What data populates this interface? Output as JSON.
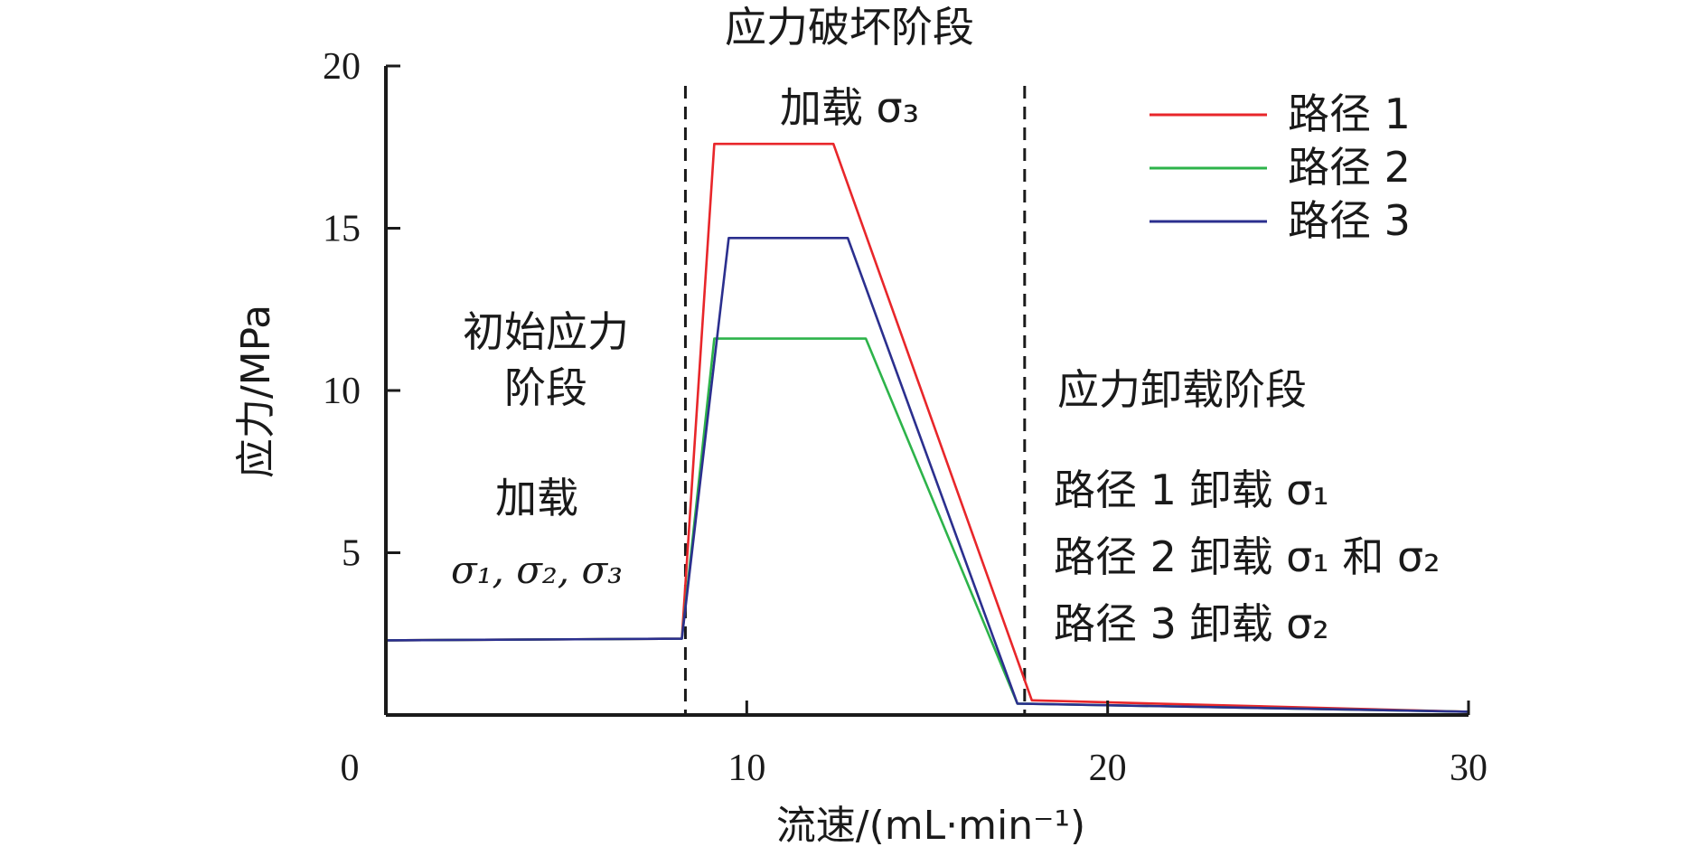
{
  "chart_data": {
    "type": "line",
    "xlabel": "流速/(mL·min⁻¹)",
    "ylabel": "应力/MPa",
    "xlim": [
      0,
      30
    ],
    "ylim": [
      0,
      20
    ],
    "xticks": [
      0,
      10,
      20,
      30
    ],
    "yticks": [
      5,
      10,
      15,
      20
    ],
    "grid": false,
    "legend_position": "top-right",
    "stage_dividers": [
      8.3,
      17.7
    ],
    "series": [
      {
        "name": "路径 1",
        "color": "#e8262a",
        "x": [
          0,
          8.2,
          9.1,
          12.4,
          17.9,
          30
        ],
        "y": [
          2.3,
          2.35,
          17.6,
          17.6,
          0.45,
          0.1
        ]
      },
      {
        "name": "路径 2",
        "color": "#2db34a",
        "x": [
          0,
          8.2,
          9.1,
          13.3,
          17.5,
          30
        ],
        "y": [
          2.3,
          2.35,
          11.6,
          11.6,
          0.35,
          0.1
        ]
      },
      {
        "name": "路径 3",
        "color": "#2b2f8e",
        "x": [
          0,
          8.2,
          9.5,
          12.8,
          17.5,
          30
        ],
        "y": [
          2.3,
          2.35,
          14.7,
          14.7,
          0.35,
          0.1
        ]
      }
    ],
    "annotations": {
      "stage_damage": "应力破坏阶段",
      "load_s3": "加载 σ₃",
      "initial_line1": "初始应力",
      "initial_line2": "阶段",
      "load_all_line1": "加载",
      "load_all_line2": "σ₁, σ₂, σ₃",
      "unload_title": "应力卸载阶段",
      "unload_p1": "路径 1 卸载 σ₁",
      "unload_p2": "路径 2 卸载 σ₁ 和 σ₂",
      "unload_p3": "路径 3 卸载 σ₂"
    }
  }
}
